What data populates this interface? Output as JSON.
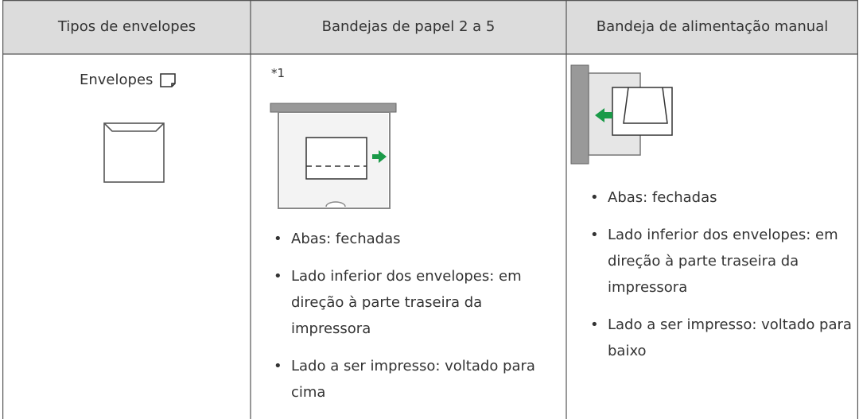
{
  "table": {
    "header": [
      "Tipos de envelopes",
      "Bandejas de papel 2 a 5",
      "Bandeja de alimentação manual"
    ],
    "rows": [
      [
        {
          "label": "Envelopes"
        },
        {
          "note": "*1",
          "bullets": [
            "Abas: fechadas",
            "Lado inferior dos envelopes: em direção à parte traseira da impressora",
            "Lado a ser impresso: voltado para cima"
          ]
        },
        {
          "bullets": [
            "Abas: fechadas",
            "Lado inferior dos envelopes: em direção à parte traseira da impressora",
            "Lado a ser impresso: voltado para baixo"
          ]
        }
      ]
    ]
  }
}
